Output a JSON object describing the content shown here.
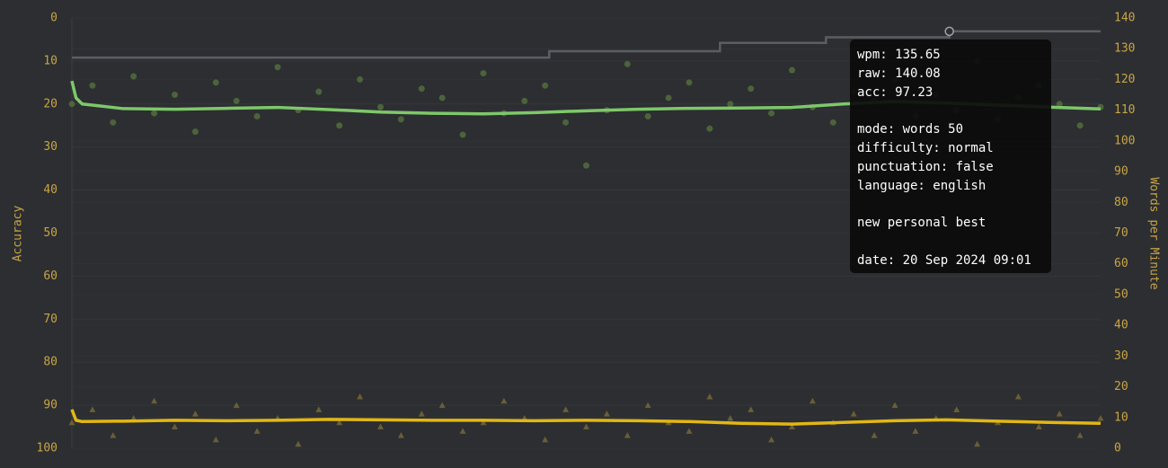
{
  "chart_data": {
    "type": "scatter",
    "ylabel": "Accuracy",
    "y2label": "Words per Minute",
    "ylim": [
      100,
      0
    ],
    "yticks": [
      0,
      10,
      20,
      30,
      40,
      50,
      60,
      70,
      80,
      90,
      100
    ],
    "y2lim": [
      0,
      140
    ],
    "y2ticks": [
      0,
      10,
      20,
      30,
      40,
      50,
      60,
      70,
      80,
      90,
      100,
      110,
      120,
      130,
      140
    ],
    "xlim": [
      0,
      1000
    ],
    "grid": true,
    "series": [
      {
        "type": "scatter",
        "marker": "circle",
        "axis": "y2",
        "color": "#55703f",
        "x": [
          0,
          20,
          40,
          60,
          80,
          100,
          120,
          140,
          160,
          180,
          200,
          220,
          240,
          260,
          280,
          300,
          320,
          340,
          360,
          380,
          400,
          420,
          440,
          460,
          480,
          500,
          520,
          540,
          560,
          580,
          600,
          620,
          640,
          660,
          680,
          700,
          720,
          740,
          760,
          780,
          800,
          820,
          840,
          860,
          880,
          900,
          920,
          940,
          960,
          980,
          1000
        ],
        "values": [
          112,
          118,
          106,
          121,
          109,
          115,
          103,
          119,
          113,
          108,
          124,
          110,
          116,
          105,
          120,
          111,
          107,
          117,
          114,
          102,
          122,
          109,
          113,
          118,
          106,
          92,
          110,
          125,
          108,
          114,
          119,
          104,
          112,
          117,
          109,
          123,
          111,
          106,
          116,
          113,
          120,
          108,
          115,
          110,
          126,
          107,
          114,
          118,
          112,
          105,
          111
        ]
      },
      {
        "type": "scatter",
        "marker": "triangle",
        "axis": "y",
        "color": "#7a6a3a",
        "x": [
          0,
          20,
          40,
          60,
          80,
          100,
          120,
          140,
          160,
          180,
          200,
          220,
          240,
          260,
          280,
          300,
          320,
          340,
          360,
          380,
          400,
          420,
          440,
          460,
          480,
          500,
          520,
          540,
          560,
          580,
          600,
          620,
          640,
          660,
          680,
          700,
          720,
          740,
          760,
          780,
          800,
          820,
          840,
          860,
          880,
          900,
          920,
          940,
          960,
          980,
          1000
        ],
        "values": [
          94,
          91,
          97,
          93,
          89,
          95,
          92,
          98,
          90,
          96,
          93,
          99,
          91,
          94,
          88,
          95,
          97,
          92,
          90,
          96,
          94,
          89,
          93,
          98,
          91,
          95,
          92,
          97,
          90,
          94,
          96,
          88,
          93,
          91,
          98,
          95,
          89,
          94,
          92,
          97,
          90,
          96,
          93,
          91,
          99,
          94,
          88,
          95,
          92,
          97,
          93
        ]
      },
      {
        "type": "step",
        "axis": "y2",
        "color": "#5b5e63",
        "highlight": 4,
        "x": [
          0,
          464,
          630,
          733,
          853,
          1000
        ],
        "values": [
          127.1,
          129.2,
          131.9,
          133.7,
          135.65,
          135.65
        ]
      },
      {
        "type": "line",
        "axis": "y2",
        "color": "#7ec86a",
        "x": [
          0,
          4,
          10,
          50,
          100,
          150,
          200,
          250,
          300,
          350,
          400,
          450,
          500,
          550,
          600,
          650,
          700,
          750,
          800,
          850,
          900,
          950,
          1000
        ],
        "values": [
          119.5,
          114,
          112,
          110.5,
          110.3,
          110.6,
          110.9,
          110.2,
          109.4,
          109.0,
          108.8,
          109.2,
          109.8,
          110.3,
          110.6,
          110.7,
          110.9,
          112.0,
          112.8,
          112.3,
          111.7,
          111.0,
          110.4
        ]
      },
      {
        "type": "line",
        "axis": "y",
        "color": "#e2b714",
        "x": [
          0,
          4,
          10,
          50,
          100,
          150,
          200,
          250,
          300,
          350,
          400,
          450,
          500,
          550,
          600,
          650,
          700,
          750,
          800,
          850,
          900,
          950,
          1000
        ],
        "values": [
          91,
          93.5,
          93.8,
          93.7,
          93.5,
          93.6,
          93.5,
          93.3,
          93.4,
          93.5,
          93.5,
          93.6,
          93.5,
          93.6,
          93.8,
          94.2,
          94.4,
          94.0,
          93.6,
          93.4,
          93.7,
          94.0,
          94.2
        ]
      }
    ],
    "tooltip": [
      "wpm: 135.65",
      "raw: 140.08",
      "acc: 97.23",
      "mode: words 50",
      "difficulty: normal",
      "punctuation: false",
      "language: english",
      "new personal best",
      "date: 20 Sep 2024 09:01"
    ]
  }
}
